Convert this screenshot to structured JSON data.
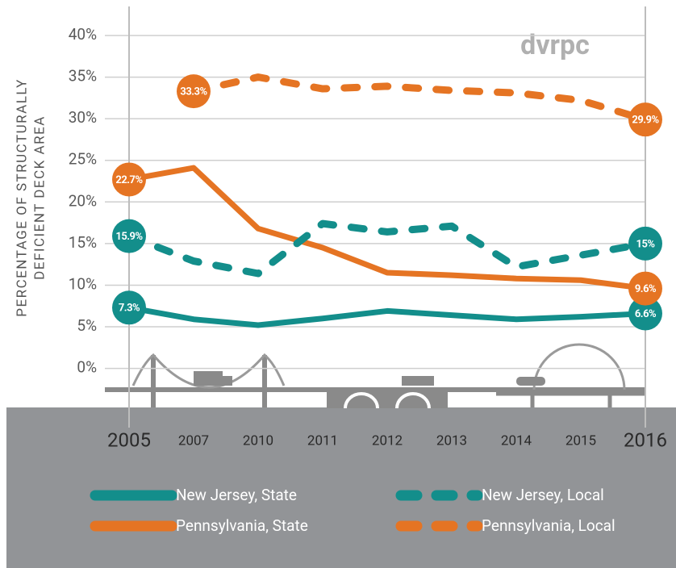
{
  "chart_data": {
    "type": "line",
    "logo": "dvrpc",
    "ylabel": [
      "PERCENTAGE OF STRUCTURALLY",
      "DEFICIENT DECK AREA"
    ],
    "categories": [
      "2005",
      "2007",
      "2010",
      "2011",
      "2012",
      "2013",
      "2014",
      "2015",
      "2016"
    ],
    "ylim": [
      0,
      40
    ],
    "yticks": [
      {
        "value": 0,
        "label": "0%"
      },
      {
        "value": 5,
        "label": "5%"
      },
      {
        "value": 10,
        "label": "10%"
      },
      {
        "value": 15,
        "label": "15%"
      },
      {
        "value": 20,
        "label": "20%"
      },
      {
        "value": 25,
        "label": "25%"
      },
      {
        "value": 30,
        "label": "30%"
      },
      {
        "value": 35,
        "label": "35%"
      },
      {
        "value": 40,
        "label": "40%"
      }
    ],
    "grid": true,
    "series": [
      {
        "name": "New Jersey, State",
        "color": "#138e8b",
        "dashed": false,
        "values": [
          7.3,
          5.9,
          5.2,
          6.0,
          6.9,
          6.4,
          5.9,
          6.2,
          6.6
        ],
        "value_labels": [
          "7.3%",
          null,
          null,
          null,
          null,
          null,
          null,
          null,
          "6.6%"
        ]
      },
      {
        "name": "Pennsylvania, State",
        "color": "#e57423",
        "dashed": false,
        "values": [
          22.7,
          24.1,
          16.8,
          14.5,
          11.5,
          11.2,
          10.8,
          10.6,
          9.6
        ],
        "value_labels": [
          "22.7%",
          null,
          null,
          null,
          null,
          null,
          null,
          null,
          "9.6%"
        ]
      },
      {
        "name": "New Jersey, Local",
        "color": "#138e8b",
        "dashed": true,
        "values": [
          15.9,
          12.9,
          11.4,
          17.4,
          16.4,
          17.1,
          12.2,
          13.6,
          15
        ],
        "value_labels": [
          "15.9%",
          null,
          null,
          null,
          null,
          null,
          null,
          null,
          "15%"
        ]
      },
      {
        "name": "Pennsylvania, Local",
        "color": "#e57423",
        "dashed": true,
        "values": [
          null,
          33.3,
          35.0,
          33.6,
          33.9,
          33.4,
          33.1,
          32.2,
          29.9
        ],
        "value_labels": [
          null,
          "33.3%",
          null,
          null,
          null,
          null,
          null,
          null,
          "29.9%"
        ]
      }
    ]
  }
}
